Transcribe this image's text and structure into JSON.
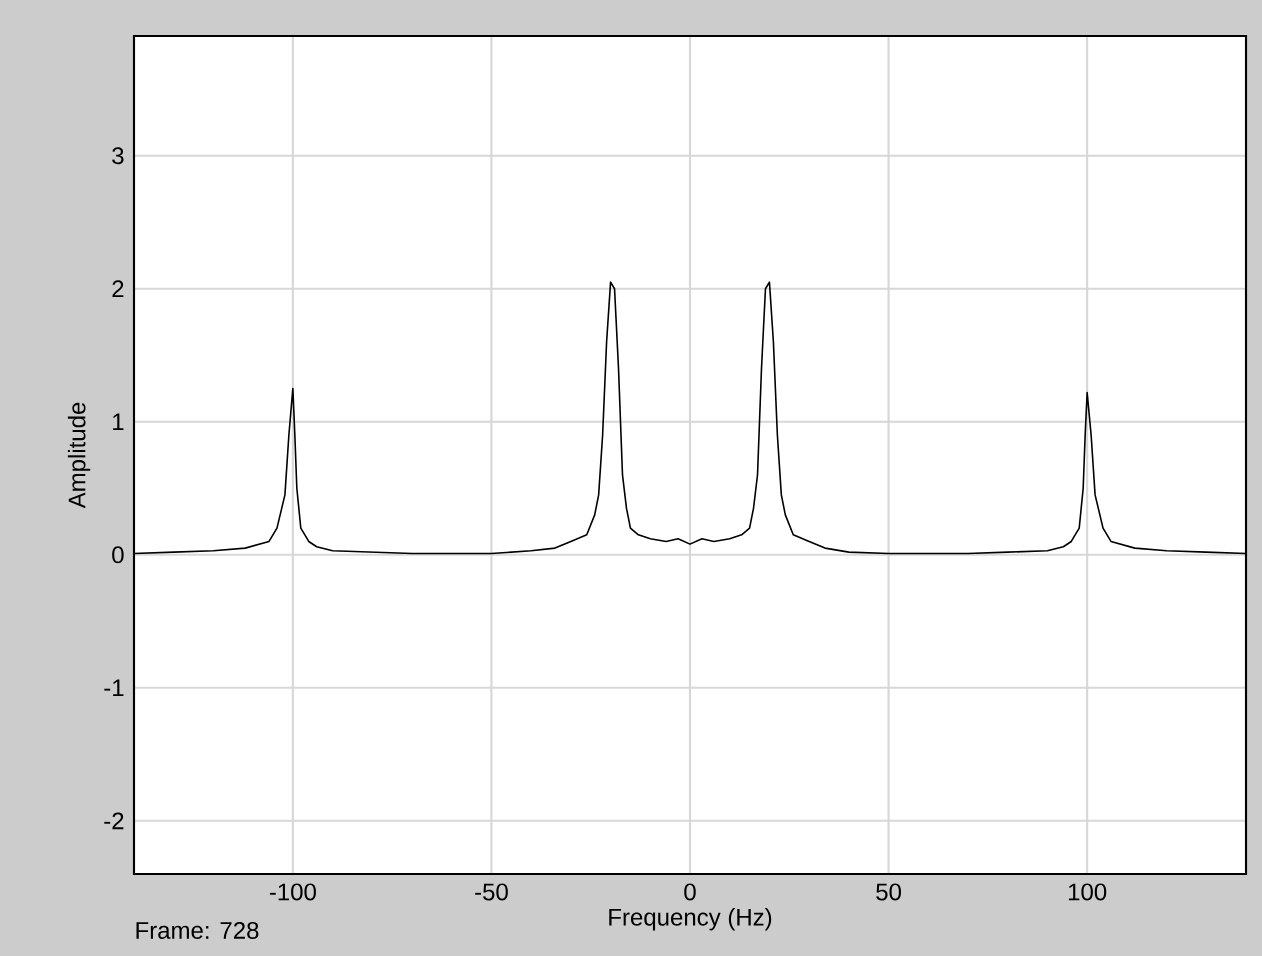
{
  "chart_data": {
    "type": "line",
    "xlabel": "Frequency (Hz)",
    "ylabel": "Amplitude",
    "annotations": [
      "Frame: 728"
    ],
    "xlim": [
      -140,
      140
    ],
    "ylim": [
      -2.4,
      3.9
    ],
    "xticks": [
      -100,
      -50,
      0,
      50,
      100
    ],
    "yticks": [
      -2,
      -1,
      0,
      1,
      2,
      3
    ],
    "grid": true,
    "marker": "none",
    "line_style": "solid",
    "x": [
      -140,
      -130,
      -120,
      -112,
      -106,
      -104,
      -102,
      -101,
      -100,
      -99.5,
      -99,
      -98,
      -96,
      -94,
      -90,
      -80,
      -70,
      -60,
      -50,
      -40,
      -34,
      -30,
      -26,
      -24,
      -23,
      -22,
      -21,
      -20,
      -19,
      -18,
      -17,
      -16,
      -15,
      -13,
      -10,
      -6,
      -3,
      0,
      3,
      6,
      10,
      13,
      15,
      16,
      17,
      18,
      19,
      20,
      21,
      22,
      23,
      24,
      26,
      30,
      34,
      40,
      50,
      60,
      70,
      80,
      90,
      94,
      96,
      98,
      99,
      99.5,
      100,
      101,
      102,
      104,
      106,
      112,
      120,
      130,
      140
    ],
    "series": [
      {
        "color": "#000000",
        "values": [
          0.01,
          0.02,
          0.03,
          0.05,
          0.1,
          0.2,
          0.45,
          0.9,
          1.25,
          0.9,
          0.5,
          0.2,
          0.1,
          0.06,
          0.03,
          0.02,
          0.01,
          0.01,
          0.01,
          0.03,
          0.05,
          0.1,
          0.15,
          0.3,
          0.45,
          0.9,
          1.6,
          2.05,
          2.0,
          1.4,
          0.6,
          0.35,
          0.2,
          0.15,
          0.12,
          0.1,
          0.12,
          0.08,
          0.12,
          0.1,
          0.12,
          0.15,
          0.2,
          0.35,
          0.6,
          1.4,
          2.0,
          2.05,
          1.6,
          0.9,
          0.45,
          0.3,
          0.15,
          0.1,
          0.05,
          0.02,
          0.01,
          0.01,
          0.01,
          0.02,
          0.03,
          0.06,
          0.1,
          0.2,
          0.5,
          0.9,
          1.22,
          0.9,
          0.45,
          0.2,
          0.1,
          0.05,
          0.03,
          0.02,
          0.01
        ]
      }
    ]
  }
}
